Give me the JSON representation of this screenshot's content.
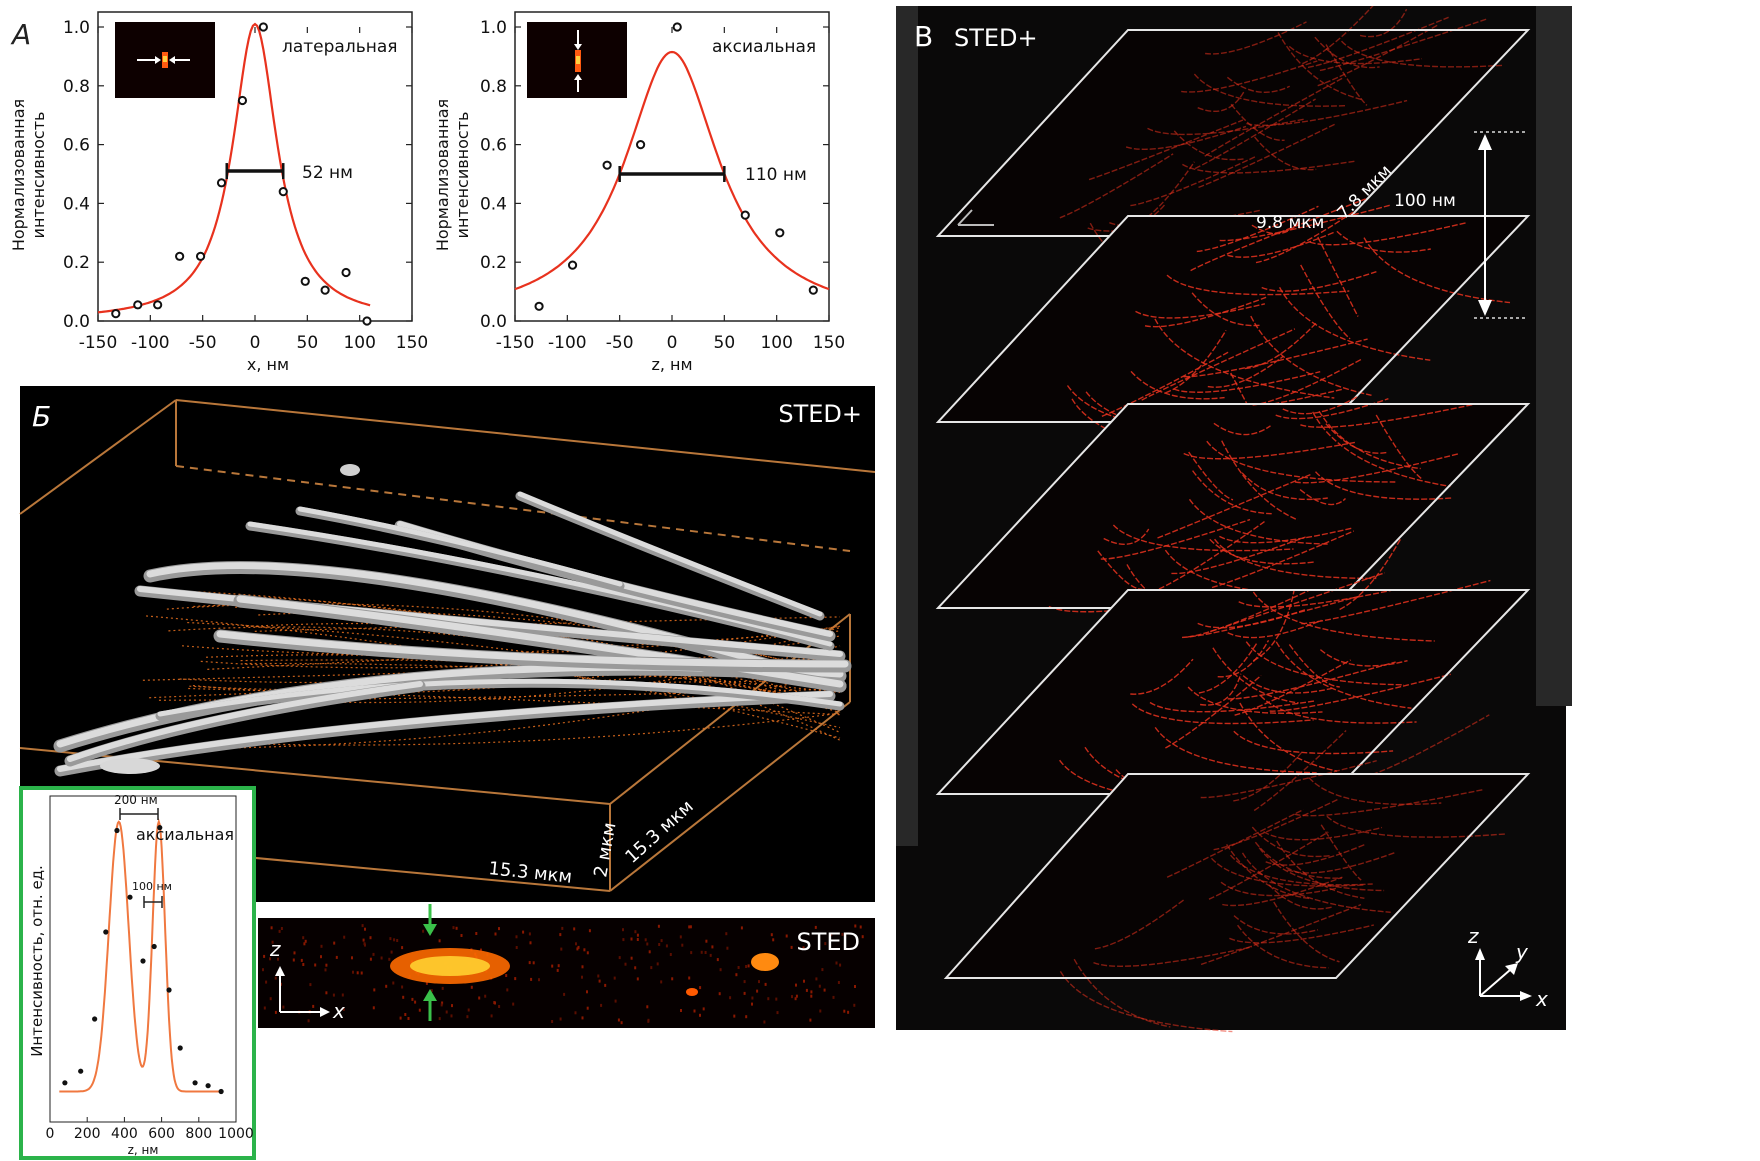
{
  "panel_labels": {
    "A": "А",
    "B_cyr": "Б",
    "V": "В"
  },
  "chart_data": [
    {
      "type": "scatter",
      "panel": "А",
      "title": "латеральная",
      "xlabel": "x, нм",
      "ylabel_line1": "Нормализованная",
      "ylabel_line2": "интенсивность",
      "xlim": [
        -150,
        150
      ],
      "ylim": [
        0,
        1.0
      ],
      "xticks": [
        "-150",
        "-100",
        "-50",
        "0",
        "50",
        "100",
        "150"
      ],
      "yticks": [
        "0.0",
        "0.2",
        "0.4",
        "0.6",
        "0.8",
        "1.0"
      ],
      "points": [
        {
          "x": -133,
          "y": 0.025
        },
        {
          "x": -112,
          "y": 0.055
        },
        {
          "x": -93,
          "y": 0.055
        },
        {
          "x": -72,
          "y": 0.22
        },
        {
          "x": -52,
          "y": 0.22
        },
        {
          "x": -32,
          "y": 0.47
        },
        {
          "x": -12,
          "y": 0.75
        },
        {
          "x": 8,
          "y": 1.0
        },
        {
          "x": 27,
          "y": 0.44
        },
        {
          "x": 48,
          "y": 0.135
        },
        {
          "x": 67,
          "y": 0.105
        },
        {
          "x": 87,
          "y": 0.165
        },
        {
          "x": 107,
          "y": 0.0
        }
      ],
      "fit": {
        "shape": "lorentzian",
        "center": 0,
        "fwhm": 52,
        "peak": 1.01,
        "color": "#e8321e"
      },
      "fwhm_x": [
        -27,
        27
      ],
      "fwhm_y": 0.51,
      "annotation": "52 нм"
    },
    {
      "type": "scatter",
      "panel": "А",
      "title": "аксиальная",
      "xlabel": "z, нм",
      "ylabel_line1": "Нормализованная",
      "ylabel_line2": "интенсивность",
      "xlim": [
        -150,
        150
      ],
      "ylim": [
        0,
        1.0
      ],
      "xticks": [
        "-150",
        "-100",
        "-50",
        "0",
        "50",
        "100",
        "150"
      ],
      "yticks": [
        "0.0",
        "0.2",
        "0.4",
        "0.6",
        "0.8",
        "1.0"
      ],
      "points": [
        {
          "x": -127,
          "y": 0.05
        },
        {
          "x": -95,
          "y": 0.19
        },
        {
          "x": -62,
          "y": 0.53
        },
        {
          "x": -30,
          "y": 0.6
        },
        {
          "x": 5,
          "y": 1.0
        },
        {
          "x": 70,
          "y": 0.36
        },
        {
          "x": 103,
          "y": 0.3
        },
        {
          "x": 135,
          "y": 0.105
        }
      ],
      "fit": {
        "shape": "lorentzian",
        "center": 0,
        "fwhm": 110,
        "peak": 0.915,
        "color": "#e8321e"
      },
      "fwhm_x": [
        -50,
        50
      ],
      "fwhm_y": 0.5,
      "annotation": "110 нм"
    },
    {
      "type": "scatter",
      "panel": "Б",
      "title": "аксиальная",
      "xlabel": "z, нм",
      "ylabel": "Интенсивность, отн. ед.",
      "xlim": [
        0,
        1000
      ],
      "xticks": [
        "0",
        "200",
        "400",
        "600",
        "800",
        "1000"
      ],
      "points": [
        {
          "x": 80,
          "y": 0.08
        },
        {
          "x": 165,
          "y": 0.12
        },
        {
          "x": 240,
          "y": 0.3
        },
        {
          "x": 300,
          "y": 0.6
        },
        {
          "x": 360,
          "y": 0.95
        },
        {
          "x": 430,
          "y": 0.72
        },
        {
          "x": 500,
          "y": 0.5
        },
        {
          "x": 560,
          "y": 0.55
        },
        {
          "x": 590,
          "y": 0.96
        },
        {
          "x": 640,
          "y": 0.4
        },
        {
          "x": 700,
          "y": 0.2
        },
        {
          "x": 780,
          "y": 0.08
        },
        {
          "x": 850,
          "y": 0.07
        },
        {
          "x": 920,
          "y": 0.05
        }
      ],
      "fit": {
        "shape": "double-gaussian",
        "centers": [
          370,
          580
        ],
        "color": "#f07840"
      },
      "annotation_peaks": "200 нм",
      "annotation_valley": "100 нм"
    }
  ],
  "panel_b": {
    "volume_title": "STED+",
    "dim_x": "15.3 мкм",
    "dim_z": "2 мкм",
    "dim_y": "15.3 мкм",
    "strip_title": "STED",
    "strip_axis_z": "z",
    "strip_axis_x": "x"
  },
  "panel_v": {
    "title": "STED+",
    "dim_x": "9.8 мкм",
    "dim_y": "7.8 мкм",
    "spacing": "100 нм",
    "axis_z": "z",
    "axis_y": "y",
    "axis_x": "x"
  },
  "colors": {
    "fit_red": "#e8321e",
    "fit_orange": "#f07840",
    "inset_frame": "#2bb34a",
    "box_edge": "#b9773a",
    "arrow_green": "#3ac14a",
    "filament": "#ff3b10"
  }
}
